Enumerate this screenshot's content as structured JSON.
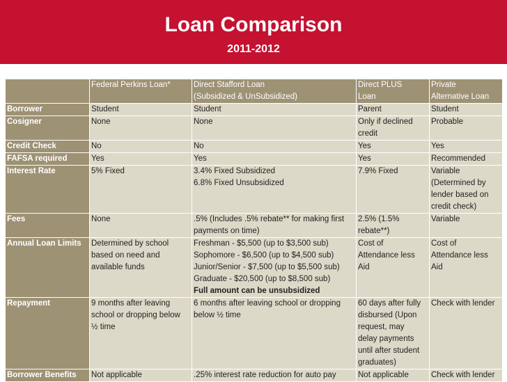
{
  "title": "Loan Comparison",
  "subtitle": "2011-2012",
  "columns": [
    [
      "Federal Perkins Loan*"
    ],
    [
      "Direct Stafford Loan",
      "(Subsidized & UnSubsidized)"
    ],
    [
      "Direct PLUS",
      "Loan"
    ],
    [
      "Private",
      "Alternative Loan"
    ]
  ],
  "rows": [
    {
      "label": "Borrower",
      "cells": [
        [
          "Student"
        ],
        [
          "Student"
        ],
        [
          "Parent"
        ],
        [
          "Student"
        ]
      ]
    },
    {
      "label": "Cosigner",
      "cells": [
        [
          "None"
        ],
        [
          "None"
        ],
        [
          "Only if declined",
          "credit"
        ],
        [
          "Probable"
        ]
      ]
    },
    {
      "label": "Credit Check",
      "cells": [
        [
          "No"
        ],
        [
          "No"
        ],
        [
          "Yes"
        ],
        [
          "Yes"
        ]
      ]
    },
    {
      "label": "FAFSA required",
      "cells": [
        [
          "Yes"
        ],
        [
          "Yes"
        ],
        [
          "Yes"
        ],
        [
          "Recommended"
        ]
      ]
    },
    {
      "label": "Interest Rate",
      "cells": [
        [
          "5% Fixed"
        ],
        [
          "3.4% Fixed Subsidized",
          "6.8% Fixed Unsubsidized"
        ],
        [
          "7.9% Fixed"
        ],
        [
          "Variable",
          "(Determined by",
          "lender based on",
          "credit check)"
        ]
      ]
    },
    {
      "label": "Fees",
      "cells": [
        [
          "None"
        ],
        [
          ".5% (Includes .5% rebate** for making first",
          "payments on time)"
        ],
        [
          "2.5% (1.5%",
          "rebate**)"
        ],
        [
          "Variable"
        ]
      ]
    },
    {
      "label": "Annual Loan Limits",
      "cells": [
        [
          "Determined by school",
          "based on need and",
          "available funds"
        ],
        [
          "Freshman - $5,500 (up to $3,500 sub)",
          "Sophomore - $6,500 (up to $4,500 sub)",
          "Junior/Senior - $7,500 (up to $5,500 sub)",
          "Graduate - $20,500 (up to $8,500 sub)"
        ],
        [
          "Cost of",
          "Attendance less",
          "Aid"
        ],
        [
          "Cost of",
          "Attendance less",
          "Aid"
        ]
      ],
      "note": "Full amount can be unsubsidized"
    },
    {
      "label": "Repayment",
      "cells": [
        [
          "9 months after leaving",
          "school or dropping below",
          "½ time"
        ],
        [
          "6 months after leaving school or dropping",
          "below ½ time"
        ],
        [
          "60 days after fully",
          "disbursed (Upon",
          "request, may",
          "delay payments",
          "until after student",
          "graduates)"
        ],
        [
          "Check with lender"
        ]
      ]
    },
    {
      "label": "Borrower Benefits",
      "cells": [
        [
          "Not applicable"
        ],
        [
          ".25% interest rate reduction for auto pay"
        ],
        [
          "Not applicable"
        ],
        [
          "Check with lender"
        ]
      ]
    }
  ]
}
